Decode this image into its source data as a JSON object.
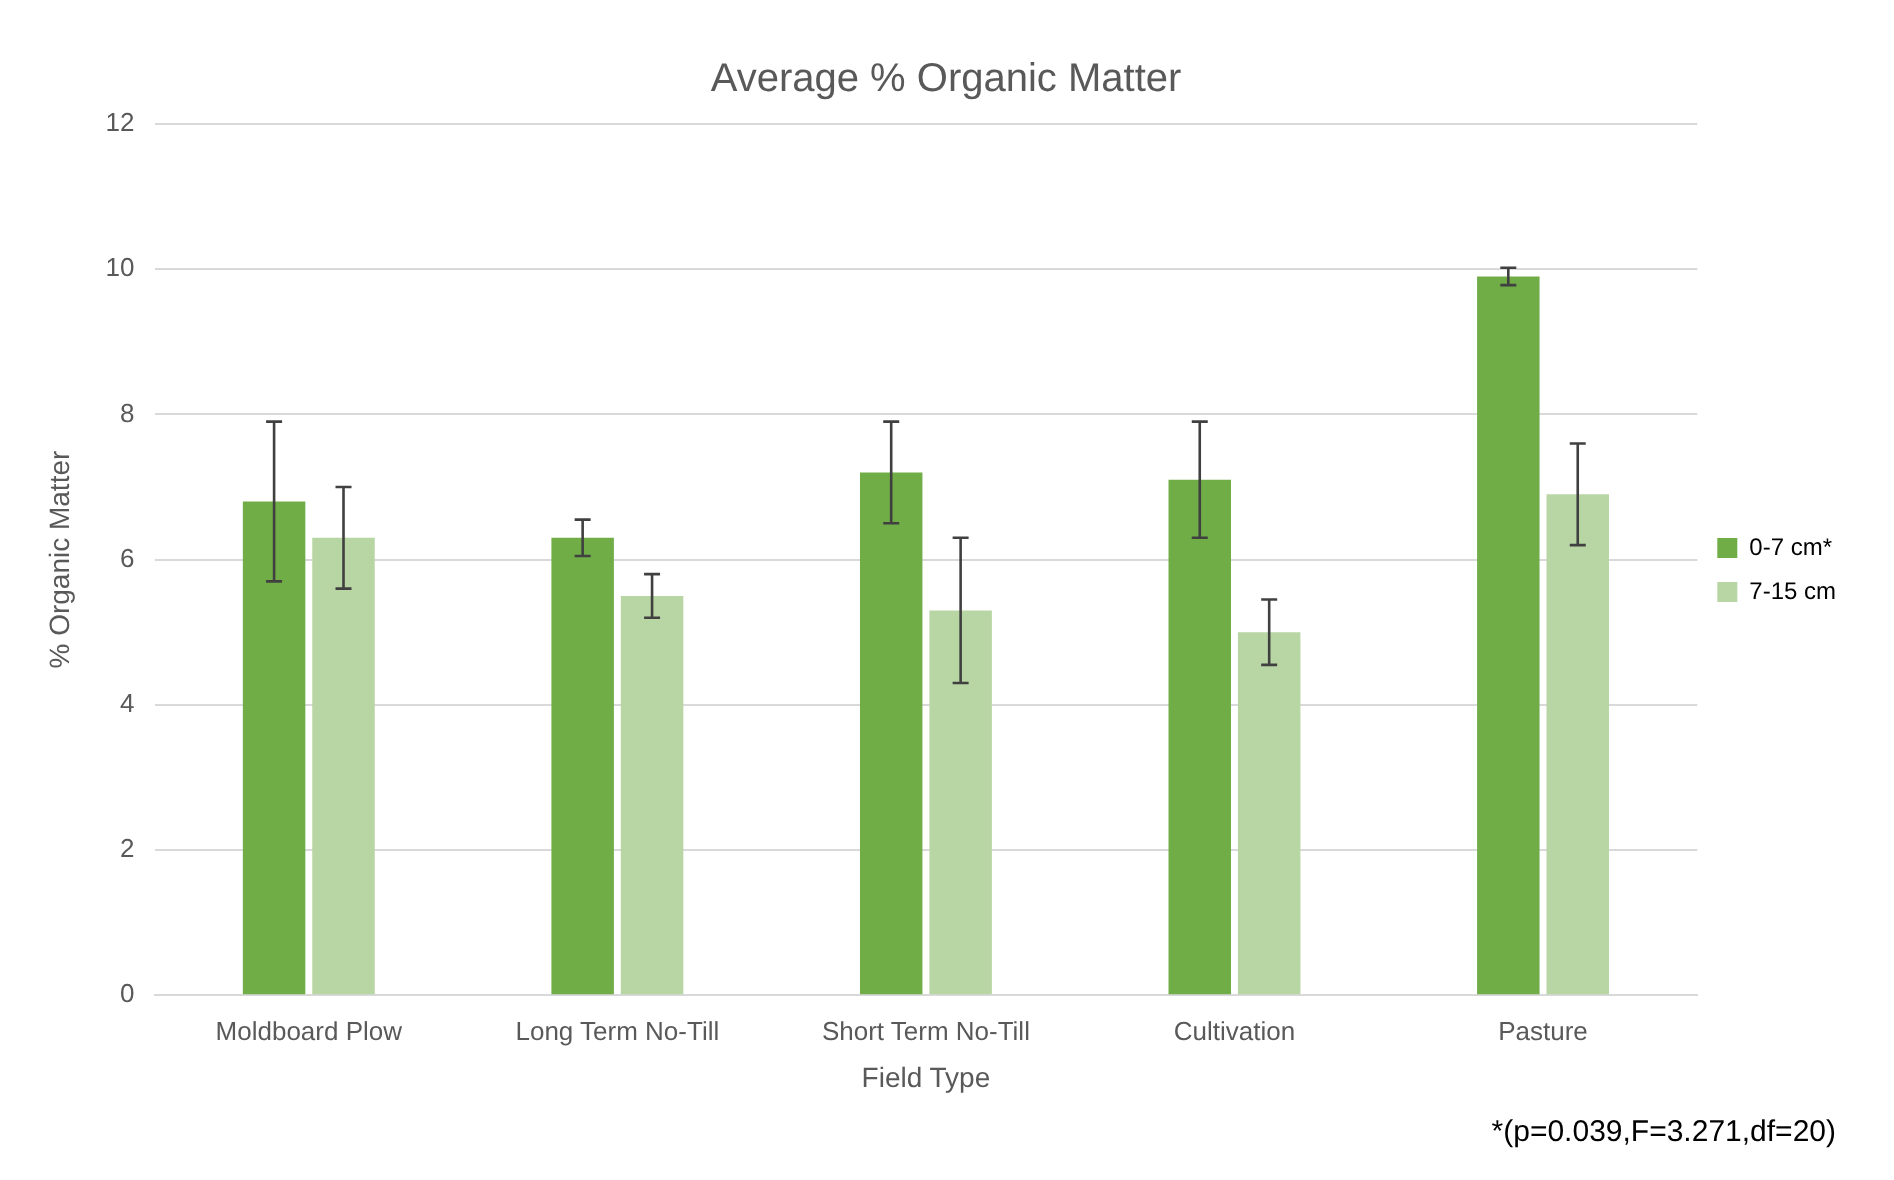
{
  "chart_data": {
    "type": "bar",
    "title": "Average % Organic Matter",
    "xlabel": "Field Type",
    "ylabel": "% Organic Matter",
    "categories": [
      "Moldboard Plow",
      "Long Term No-Till",
      "Short Term No-Till",
      "Cultivation",
      "Pasture"
    ],
    "series": [
      {
        "name": "0-7 cm*",
        "color": "#70ad47",
        "values": [
          6.8,
          6.3,
          7.2,
          7.1,
          9.9
        ],
        "errors": [
          1.1,
          0.25,
          0.7,
          0.8,
          0.12
        ]
      },
      {
        "name": "7-15 cm",
        "color": "#b8d6a3",
        "values": [
          6.3,
          5.5,
          5.3,
          5.0,
          6.9
        ],
        "errors": [
          0.7,
          0.3,
          1.0,
          0.45,
          0.7
        ]
      }
    ],
    "ylim": [
      0,
      12
    ],
    "yticks": [
      0,
      2,
      4,
      6,
      8,
      10,
      12
    ],
    "grid": "y",
    "legend": "right",
    "annotations": [
      "*(p=0.039,F=3.271,df=20)"
    ]
  }
}
